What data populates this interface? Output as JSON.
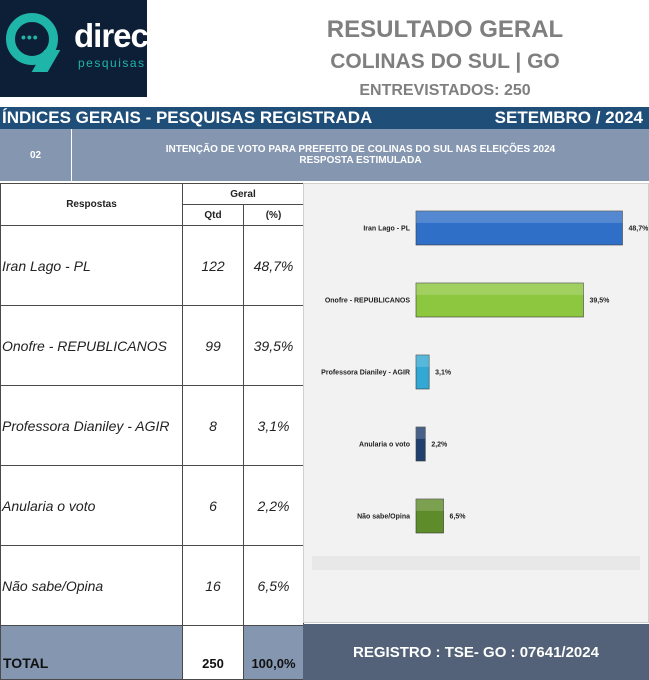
{
  "logo": {
    "brand": "direct",
    "tagline": "pesquisas",
    "bubble": "•••"
  },
  "header": {
    "title": "RESULTADO GERAL",
    "location": "COLINAS DO SUL | GO",
    "interviewed": "ENTREVISTADOS: 250"
  },
  "band": {
    "left": "ÍNDICES GERAIS - PESQUISAS REGISTRADA",
    "right": "SETEMBRO / 2024"
  },
  "question": {
    "number": "02",
    "line1": "INTENÇÃO DE VOTO PARA PREFEITO DE COLINAS DO SUL NAS ELEIÇÕES 2024",
    "line2": "RESPOSTA ESTIMULADA"
  },
  "table": {
    "col_responses": "Respostas",
    "col_group": "Geral",
    "col_qtd": "Qtd",
    "col_pct": "(%)",
    "rows": [
      {
        "name": "Iran Lago - PL",
        "qtd": "122",
        "pct": "48,7%"
      },
      {
        "name": "Onofre - REPUBLICANOS",
        "qtd": "99",
        "pct": "39,5%"
      },
      {
        "name": "Professora Dianiley - AGIR",
        "qtd": "8",
        "pct": "3,1%"
      },
      {
        "name": "Anularia o voto",
        "qtd": "6",
        "pct": "2,2%"
      },
      {
        "name": "Não sabe/Opina",
        "qtd": "16",
        "pct": "6,5%"
      }
    ],
    "total_label": "TOTAL",
    "total_qtd": "250",
    "total_pct": "100,0%"
  },
  "registry": "REGISTRO : TSE- GO : 07641/2024",
  "colors": {
    "band": "#1f4e79",
    "header_box": "#8496b0",
    "registry": "#536278"
  },
  "chart_data": {
    "type": "bar",
    "orientation": "horizontal",
    "categories": [
      "Iran Lago - PL",
      "Onofre - REPUBLICANOS",
      "Professora Dianiley - AGIR",
      "Anularia o voto",
      "Não sabe/Opina"
    ],
    "values": [
      48.7,
      39.5,
      3.1,
      2.2,
      6.5
    ],
    "value_labels": [
      "48,7%",
      "39,5%",
      "3,1%",
      "2,2%",
      "6,5%"
    ],
    "colors": [
      "#2f6fc8",
      "#8dc63f",
      "#31a9d4",
      "#1f3f6e",
      "#5e8c2a"
    ],
    "xlim": [
      0,
      50
    ],
    "grid": false,
    "legend": "none"
  }
}
